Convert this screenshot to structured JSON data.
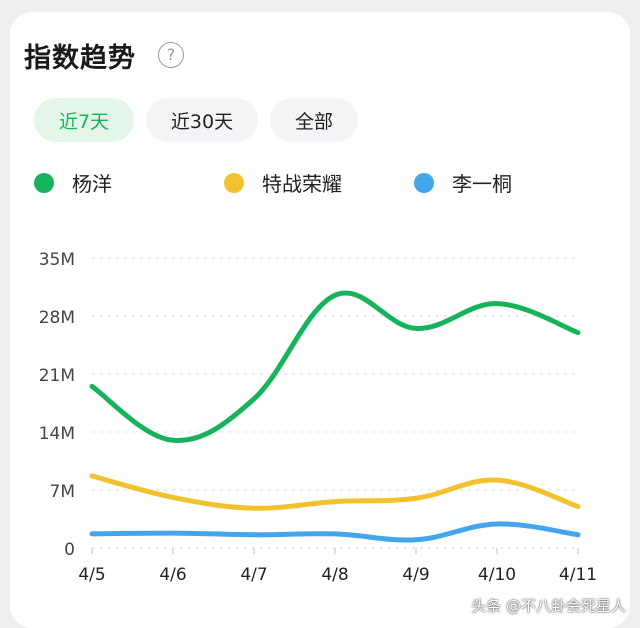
{
  "card": {
    "title": "指数趋势",
    "help_glyph": "?",
    "tabs": [
      {
        "label": "近7天",
        "active": true
      },
      {
        "label": "近30天",
        "active": false
      },
      {
        "label": "全部",
        "active": false
      }
    ]
  },
  "watermark": "头条 @不八卦会死星人",
  "colors": {
    "green": "#16b35c",
    "yellow": "#f2c12e",
    "blue": "#43a6ea"
  },
  "chart_data": {
    "type": "line",
    "categories": [
      "4/5",
      "4/6",
      "4/7",
      "4/8",
      "4/9",
      "4/10",
      "4/11"
    ],
    "y_tick_labels": [
      "0",
      "7M",
      "14M",
      "21M",
      "28M",
      "35M"
    ],
    "y_ticks": [
      0,
      7,
      14,
      21,
      28,
      35
    ],
    "ylim": [
      0,
      35
    ],
    "grid": true,
    "legend_position": "top",
    "series": [
      {
        "name": "杨洋",
        "color": "#16b35c",
        "values": [
          19.5,
          13,
          18,
          30.5,
          26.5,
          29.5,
          26.0
        ]
      },
      {
        "name": "特战荣耀",
        "color": "#f2c12e",
        "values": [
          8.7,
          6.1,
          4.8,
          5.6,
          6.0,
          8.2,
          5.0
        ]
      },
      {
        "name": "李一桐",
        "color": "#43a6ea",
        "values": [
          1.7,
          1.8,
          1.6,
          1.7,
          1.0,
          2.9,
          1.6
        ]
      }
    ]
  }
}
